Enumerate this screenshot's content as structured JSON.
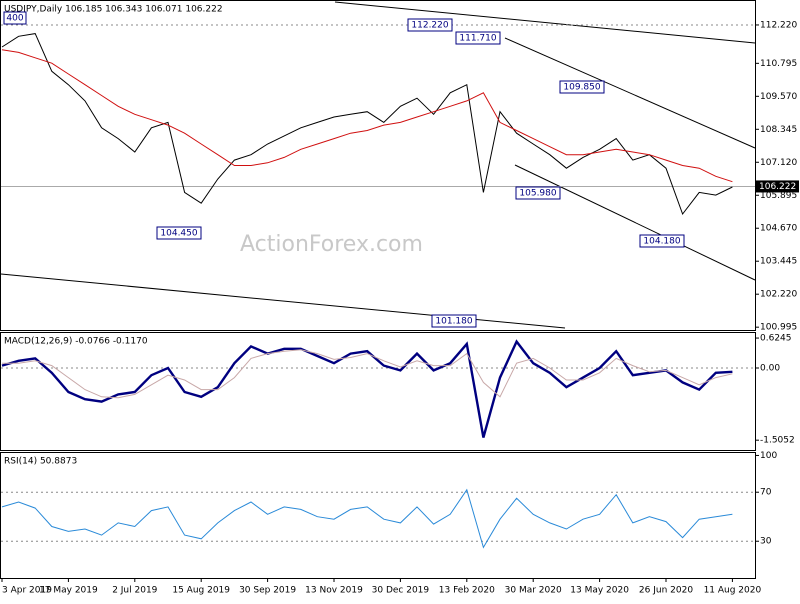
{
  "chart_data": [
    {
      "type": "line",
      "title": "USDJPY,Daily  106.185 106.343 106.071 106.222",
      "watermark": "ActionForex.com",
      "series": [
        {
          "color": "#000000",
          "values": [
            111.4,
            111.8,
            111.9,
            110.5,
            110.0,
            109.4,
            108.4,
            108.0,
            107.5,
            108.4,
            108.6,
            106.0,
            105.6,
            106.5,
            107.2,
            107.4,
            107.8,
            108.1,
            108.4,
            108.6,
            108.8,
            108.9,
            109.0,
            108.6,
            109.2,
            109.5,
            108.9,
            109.7,
            110.0,
            106.0,
            109.0,
            108.2,
            107.8,
            107.4,
            106.9,
            107.3,
            107.6,
            108.0,
            107.2,
            107.4,
            106.9,
            105.2,
            106.0,
            105.9,
            106.2
          ]
        },
        {
          "color": "#d01010",
          "values": [
            111.3,
            111.2,
            111.0,
            110.8,
            110.4,
            110.0,
            109.6,
            109.2,
            108.9,
            108.7,
            108.5,
            108.2,
            107.8,
            107.4,
            107.0,
            107.0,
            107.1,
            107.3,
            107.6,
            107.8,
            108.0,
            108.2,
            108.3,
            108.5,
            108.6,
            108.8,
            109.0,
            109.2,
            109.4,
            109.7,
            108.6,
            108.3,
            108.0,
            107.7,
            107.4,
            107.4,
            107.5,
            107.6,
            107.5,
            107.4,
            107.2,
            107.0,
            106.9,
            106.6,
            106.4
          ]
        }
      ],
      "ylim": [
        100.89,
        113.11
      ],
      "yticks": [
        {
          "value": 112.22,
          "label": "112.220"
        },
        {
          "value": 110.795,
          "label": "110.795"
        },
        {
          "value": 109.57,
          "label": "109.570"
        },
        {
          "value": 108.345,
          "label": "108.345"
        },
        {
          "value": 107.12,
          "label": "107.120"
        },
        {
          "value": 105.895,
          "label": "105.895"
        },
        {
          "value": 104.67,
          "label": "104.670"
        },
        {
          "value": 103.445,
          "label": "103.445"
        },
        {
          "value": 102.22,
          "label": "102.220"
        },
        {
          "value": 100.995,
          "label": "100.995"
        }
      ],
      "levels": [
        112.22
      ],
      "current_price": {
        "value": 106.222,
        "label": "106.222"
      },
      "annotations": [
        "400",
        "112.220",
        "111.710",
        "109.850",
        "105.980",
        "104.450",
        "104.180",
        "101.180"
      ]
    },
    {
      "type": "line",
      "title": "MACD(12,26,9) -0.0766 -0.1170",
      "series": [
        {
          "color": "#000080",
          "values": [
            0.05,
            0.15,
            0.2,
            -0.1,
            -0.5,
            -0.65,
            -0.7,
            -0.55,
            -0.5,
            -0.15,
            0.0,
            -0.5,
            -0.6,
            -0.4,
            0.1,
            0.45,
            0.3,
            0.4,
            0.4,
            0.25,
            0.1,
            0.3,
            0.35,
            0.05,
            -0.05,
            0.3,
            -0.05,
            0.1,
            0.5,
            -1.45,
            -0.2,
            0.55,
            0.1,
            -0.1,
            -0.4,
            -0.2,
            0.0,
            0.35,
            -0.15,
            -0.1,
            -0.05,
            -0.3,
            -0.45,
            -0.1,
            -0.08
          ]
        },
        {
          "color": "#c8a8a8",
          "values": [
            0.1,
            0.1,
            0.15,
            0.05,
            -0.2,
            -0.45,
            -0.6,
            -0.62,
            -0.55,
            -0.35,
            -0.15,
            -0.25,
            -0.45,
            -0.45,
            -0.2,
            0.2,
            0.3,
            0.35,
            0.38,
            0.3,
            0.18,
            0.22,
            0.3,
            0.15,
            0.02,
            0.15,
            0.05,
            0.05,
            0.3,
            -0.3,
            -0.6,
            0.1,
            0.2,
            0.0,
            -0.25,
            -0.25,
            -0.1,
            0.2,
            0.05,
            -0.08,
            -0.05,
            -0.2,
            -0.35,
            -0.2,
            -0.12
          ]
        }
      ],
      "ylim": [
        -1.71,
        0.73
      ],
      "yticks": [
        0.6245,
        {
          "value": 0,
          "label": "0.00"
        },
        -1.5052
      ],
      "levels": [
        0
      ]
    },
    {
      "type": "line",
      "title": "RSI(14) 50.8873",
      "categories": [
        "3 Apr 2019",
        null,
        null,
        null,
        "17 May 2019",
        null,
        null,
        null,
        "2 Jul 2019",
        null,
        null,
        null,
        "15 Aug 2019",
        null,
        null,
        null,
        "30 Sep 2019",
        null,
        null,
        null,
        "13 Nov 2019",
        null,
        null,
        null,
        "30 Dec 2019",
        null,
        null,
        null,
        "13 Feb 2020",
        null,
        null,
        null,
        "30 Mar 2020",
        null,
        null,
        null,
        "13 May 2020",
        null,
        null,
        null,
        "26 Jun 2020",
        null,
        null,
        null,
        "11 Aug 2020"
      ],
      "series": [
        {
          "color": "#2a8ad8",
          "values": [
            58,
            62,
            57,
            42,
            38,
            40,
            35,
            45,
            42,
            55,
            58,
            35,
            32,
            45,
            55,
            62,
            52,
            58,
            56,
            50,
            48,
            56,
            58,
            48,
            45,
            58,
            44,
            52,
            72,
            25,
            48,
            65,
            52,
            45,
            40,
            48,
            52,
            68,
            45,
            50,
            46,
            33,
            48,
            50,
            52
          ]
        }
      ],
      "ylim": [
        0,
        102
      ],
      "yticks": [
        100,
        70,
        30
      ],
      "levels": [
        70,
        30
      ]
    }
  ]
}
